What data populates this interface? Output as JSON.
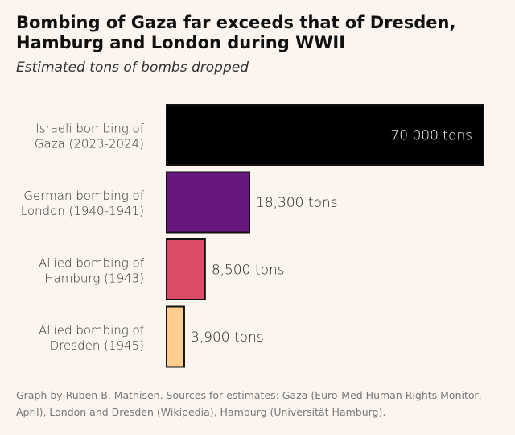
{
  "chart_data": {
    "type": "bar",
    "orientation": "horizontal",
    "title": "Bombing of Gaza far exceeds that of Dresden, Hamburg and London during WWII",
    "subtitle": "Estimated tons of bombs dropped",
    "categories": [
      [
        "Israeli bombing of",
        "Gaza (2023-2024)"
      ],
      [
        "German bombing of",
        "London (1940-1941)"
      ],
      [
        "Allied bombing of",
        "Hamburg (1943)"
      ],
      [
        "Allied bombing of",
        "Dresden (1945)"
      ]
    ],
    "values": [
      70000,
      18300,
      8500,
      3900
    ],
    "data_labels": [
      "70,000 tons",
      "18,300 tons",
      "8,500 tons",
      "3,900 tons"
    ],
    "colors": [
      "#000000",
      "#68177e",
      "#dd4b68",
      "#fdcd8e"
    ],
    "xlim": [
      0,
      70000
    ],
    "grid": false,
    "legend": "none"
  },
  "caption": "Graph by Ruben B. Mathisen. Sources for estimates: Gaza (Euro-Med Human Rights Monitor, April), London and Dresden (Wikipedia), Hamburg (Universität Hamburg)."
}
